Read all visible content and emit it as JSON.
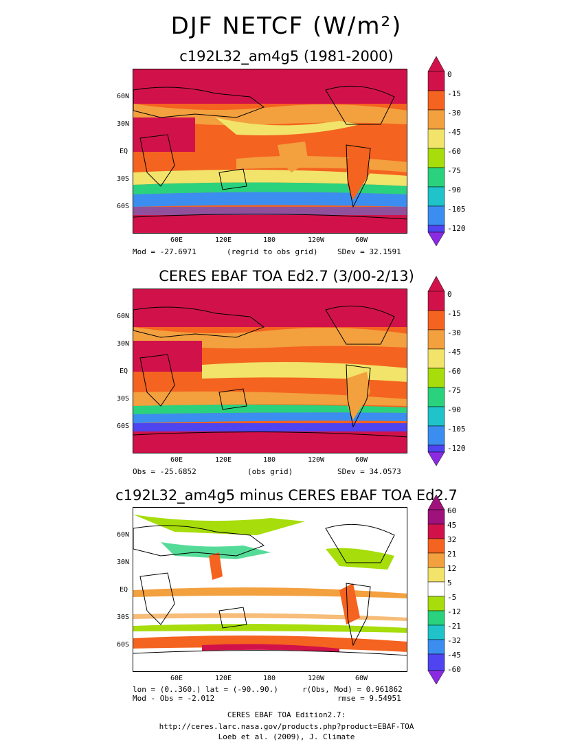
{
  "title": "DJF NETCF (W/m²)",
  "colors": {
    "abs_scale": [
      "#d1124a",
      "#f4631f",
      "#f3a03f",
      "#f2e36a",
      "#a6dd0b",
      "#2ad27e",
      "#1fc3c9",
      "#3b8ef0",
      "#4e44f0"
    ],
    "diff_scale": [
      "#a0127b",
      "#d1124a",
      "#f4631f",
      "#f3a03f",
      "#ffffff",
      "#a6dd0b",
      "#2ad27e",
      "#1fc3c9",
      "#3b8ef0",
      "#4e44f0"
    ]
  },
  "axes": {
    "x_ticks": [
      "60E",
      "120E",
      "180",
      "120W",
      "60W"
    ],
    "y_ticks": [
      "60N",
      "30N",
      "EQ",
      "30S",
      "60S"
    ]
  },
  "panels": [
    {
      "name": "model",
      "title": "c192L32_am4g5 (1981-2000)",
      "stat_left": "Mod = -27.6971",
      "stat_mid": "(regrid to obs grid)",
      "stat_right": "SDev = 32.1591",
      "colorbar": [
        "0",
        "-15",
        "-30",
        "-45",
        "-60",
        "-75",
        "-90",
        "-105",
        "-120"
      ]
    },
    {
      "name": "obs",
      "title": "CERES EBAF TOA Ed2.7 (3/00-2/13)",
      "stat_left": "Obs = -25.6852",
      "stat_mid": "(obs grid)",
      "stat_right": "SDev = 34.0573",
      "colorbar": [
        "0",
        "-15",
        "-30",
        "-45",
        "-60",
        "-75",
        "-90",
        "-105",
        "-120"
      ]
    },
    {
      "name": "diff",
      "title": "c192L32_am4g5 minus CERES EBAF TOA Ed2.7",
      "stat_left": "lon = (0..360.) lat = (-90..90.)",
      "stat_left2": "Mod - Obs = -2.012",
      "stat_right": "r(Obs, Mod) = 0.961862",
      "stat_right2": "rmse = 9.54951",
      "colorbar": [
        "60",
        "45",
        "32",
        "21",
        "12",
        "5",
        "-5",
        "-12",
        "-21",
        "-32",
        "-45",
        "-60"
      ]
    }
  ],
  "footer": {
    "line1": "CERES EBAF TOA Edition2.7:",
    "line2": "http://ceres.larc.nasa.gov/products.php?product=EBAF-TOA",
    "line3": "Loeb et al. (2009), J. Climate"
  }
}
